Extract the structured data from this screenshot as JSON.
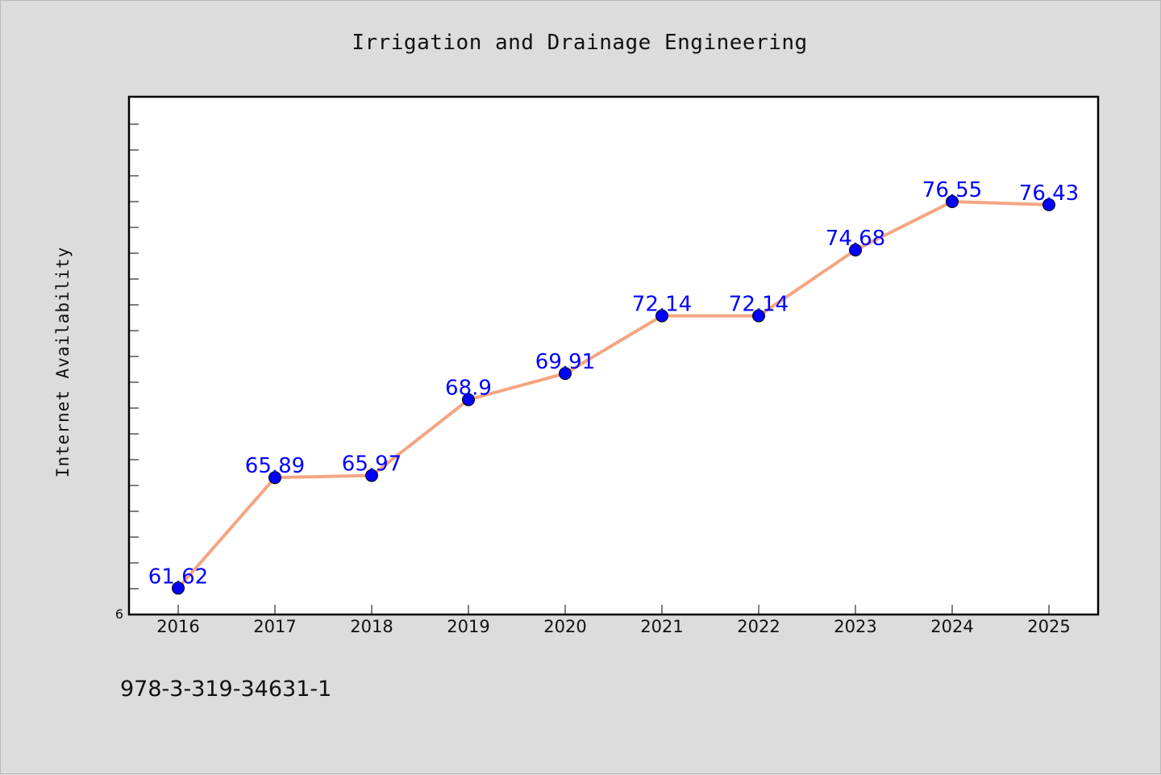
{
  "chart_data": {
    "type": "line",
    "title": "Irrigation and Drainage Engineering",
    "xlabel": "",
    "ylabel": "Internet Availability",
    "categories": [
      "2016",
      "2017",
      "2018",
      "2019",
      "2020",
      "2021",
      "2022",
      "2023",
      "2024",
      "2025"
    ],
    "series": [
      {
        "values": [
          61.62,
          65.89,
          65.97,
          68.9,
          69.91,
          72.14,
          72.14,
          74.68,
          76.55,
          76.43
        ]
      }
    ],
    "ylim": [
      60.6,
      80.6
    ],
    "y_tick_label": "6",
    "grid": false,
    "line_color": "#f4a582",
    "marker_color": "#0000ff",
    "label_color": "#0000ff"
  },
  "footer": {
    "text": "978-3-319-34631-1"
  }
}
